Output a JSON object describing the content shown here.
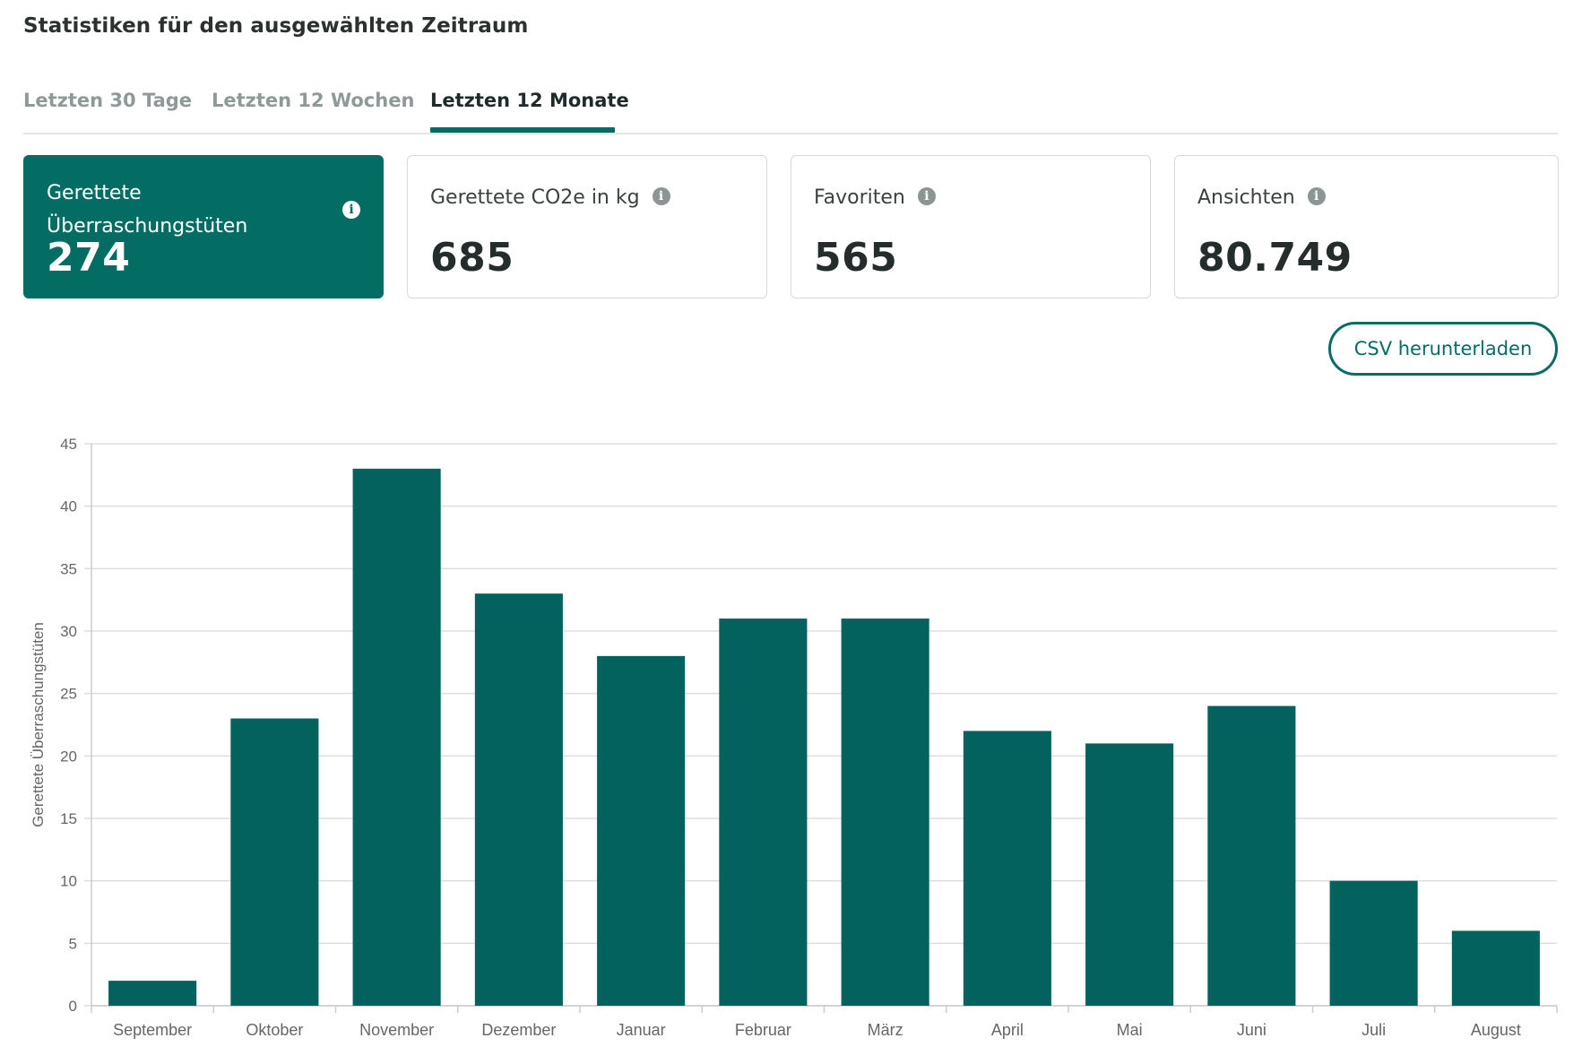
{
  "header": {
    "title": "Statistiken für den ausgewählten Zeitraum"
  },
  "tabs": [
    {
      "label": "Letzten 30 Tage",
      "active": false
    },
    {
      "label": "Letzten 12 Wochen",
      "active": false
    },
    {
      "label": "Letzten 12 Monate",
      "active": true
    }
  ],
  "cards": [
    {
      "label": "Gerettete Überraschungstüten",
      "value": "274",
      "active": true
    },
    {
      "label": "Gerettete CO2e in kg",
      "value": "685",
      "active": false
    },
    {
      "label": "Favoriten",
      "value": "565",
      "active": false
    },
    {
      "label": "Ansichten",
      "value": "80.749",
      "active": false
    }
  ],
  "actions": {
    "csv_label": "CSV herunterladen"
  },
  "colors": {
    "accent": "#036d64",
    "bar": "#03625d",
    "grid": "#dddddd",
    "axis_text": "#666666"
  },
  "chart_data": {
    "type": "bar",
    "categories": [
      "September",
      "Oktober",
      "November",
      "Dezember",
      "Januar",
      "Februar",
      "März",
      "April",
      "Mai",
      "Juni",
      "Juli",
      "August"
    ],
    "values": [
      2,
      23,
      43,
      33,
      28,
      31,
      31,
      22,
      21,
      24,
      10,
      6
    ],
    "title": "",
    "xlabel": "",
    "ylabel": "Gerettete Überraschungstüten",
    "ylim": [
      0,
      45
    ],
    "yticks": [
      0,
      5,
      10,
      15,
      20,
      25,
      30,
      35,
      40,
      45
    ],
    "grid": true
  }
}
